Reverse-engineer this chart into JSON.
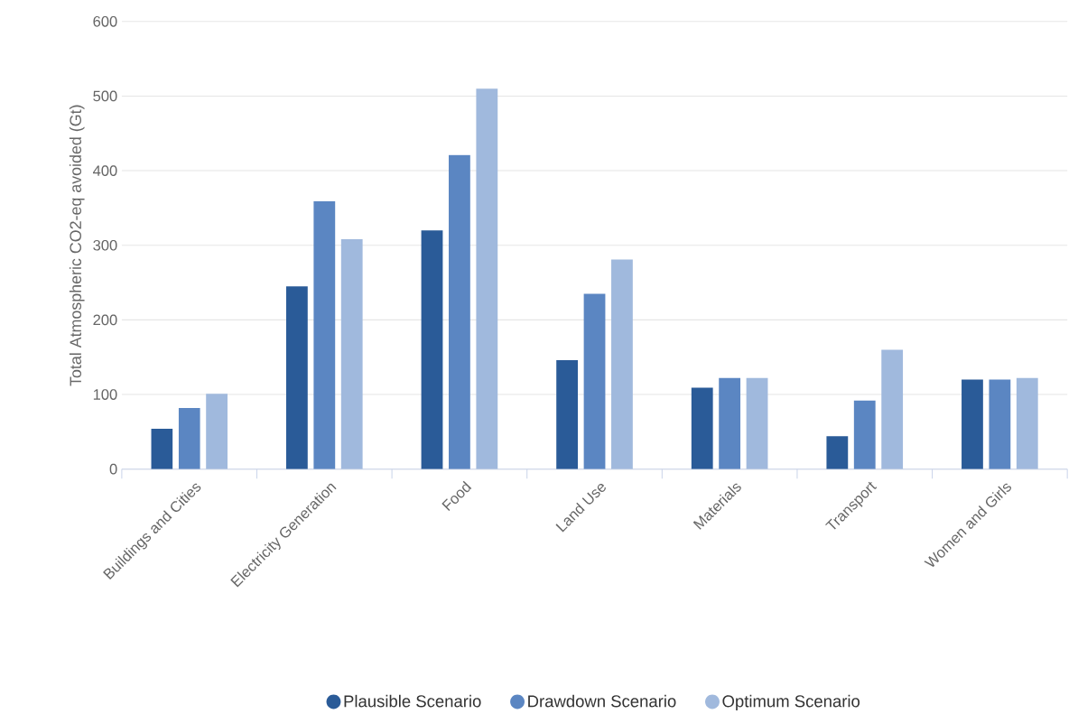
{
  "chart_data": {
    "type": "bar",
    "ylabel": "Total Atmospheric CO2-eq avoided (Gt)",
    "categories": [
      "Buildings and Cities",
      "Electricity Generation",
      "Food",
      "Land Use",
      "Materials",
      "Transport",
      "Women and Girls"
    ],
    "series": [
      {
        "name": "Plausible Scenario",
        "color": "#2a5b98",
        "values": [
          54,
          245,
          320,
          146,
          109,
          44,
          120
        ]
      },
      {
        "name": "Drawdown Scenario",
        "color": "#5b86c2",
        "values": [
          82,
          359,
          421,
          235,
          122,
          92,
          120
        ]
      },
      {
        "name": "Optimum Scenario",
        "color": "#a0b9dd",
        "values": [
          101,
          308,
          510,
          281,
          122,
          160,
          122
        ]
      }
    ],
    "ylim": [
      0,
      600
    ],
    "yticks": [
      0,
      100,
      200,
      300,
      400,
      500,
      600
    ],
    "grid": "y",
    "legend": "bottom"
  }
}
